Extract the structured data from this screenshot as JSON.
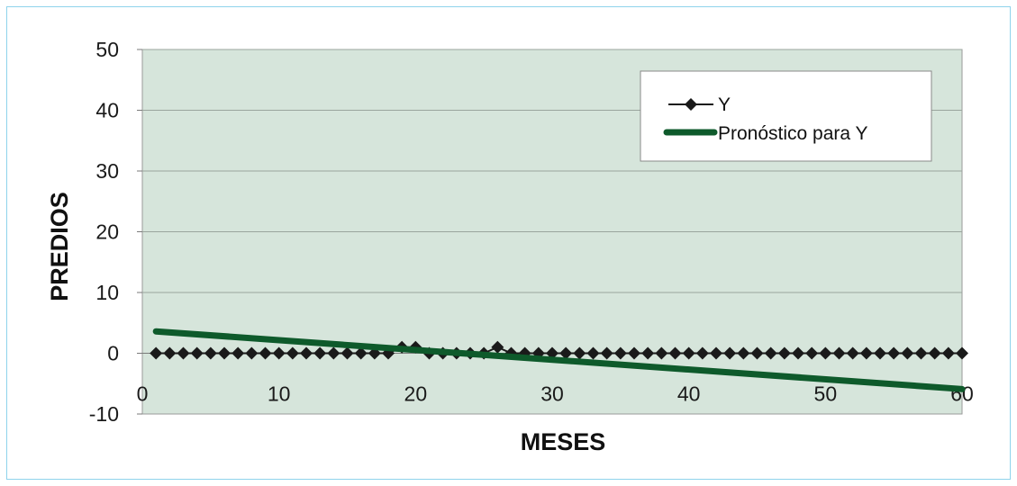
{
  "chart_data": {
    "type": "line",
    "title": "",
    "xlabel": "MESES",
    "ylabel": "PREDIOS",
    "xlim": [
      0,
      60
    ],
    "ylim": [
      -10,
      50
    ],
    "x_ticks": [
      0,
      10,
      20,
      30,
      40,
      50,
      60
    ],
    "y_ticks": [
      -10,
      0,
      10,
      20,
      30,
      40,
      50
    ],
    "grid": true,
    "legend_position": "top-right",
    "plot_background": "#d6e5db",
    "series": [
      {
        "name": "Y",
        "style": "line-with-diamond-markers",
        "color": "#1a1a1a",
        "x": [
          1,
          2,
          3,
          4,
          5,
          6,
          7,
          8,
          9,
          10,
          11,
          12,
          13,
          14,
          15,
          16,
          17,
          18,
          19,
          20,
          21,
          22,
          23,
          24,
          25,
          26,
          27,
          28,
          29,
          30,
          31,
          32,
          33,
          34,
          35,
          36,
          37,
          38,
          39,
          40,
          41,
          42,
          43,
          44,
          45,
          46,
          47,
          48,
          49,
          50,
          51,
          52,
          53,
          54,
          55,
          56,
          57,
          58,
          59,
          60
        ],
        "values": [
          0,
          0,
          0,
          0,
          0,
          0,
          0,
          0,
          0,
          0,
          0,
          0,
          0,
          0,
          0,
          0,
          0,
          0,
          1,
          1,
          0,
          0,
          0,
          0,
          0,
          1,
          0,
          0,
          0,
          0,
          0,
          0,
          0,
          0,
          0,
          0,
          0,
          0,
          0,
          0,
          0,
          0,
          0,
          0,
          0,
          0,
          0,
          0,
          0,
          0,
          0,
          0,
          0,
          0,
          0,
          0,
          0,
          0,
          0,
          0
        ]
      },
      {
        "name": "Pronóstico para Y",
        "style": "thick-line",
        "color": "#0e5a2b",
        "x": [
          1,
          60
        ],
        "values": [
          3.6,
          -5.9
        ]
      }
    ]
  }
}
